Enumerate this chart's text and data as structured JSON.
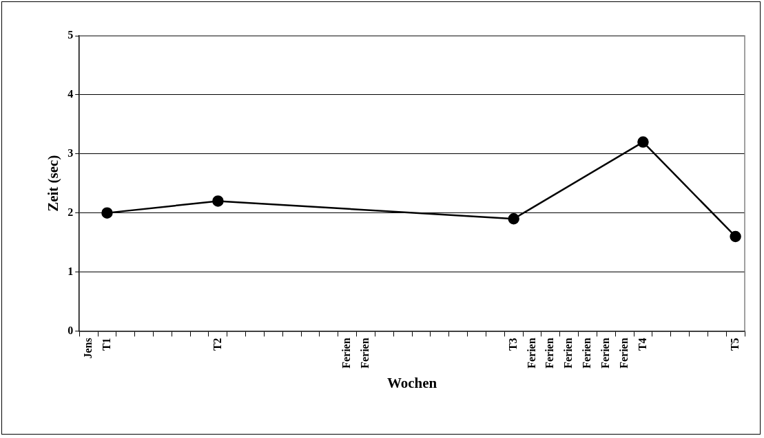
{
  "chart_data": {
    "type": "line",
    "xlabel": "Wochen",
    "ylabel": "Zeit (sec)",
    "categories": [
      "Jens",
      "T1",
      null,
      null,
      null,
      null,
      null,
      "T2",
      null,
      null,
      null,
      null,
      null,
      null,
      "Ferien",
      "Ferien",
      null,
      null,
      null,
      null,
      null,
      null,
      null,
      "T3",
      "Ferien",
      "Ferien",
      "Ferien",
      "Ferien",
      "Ferien",
      "Ferien",
      "T4",
      null,
      null,
      null,
      null,
      "T5"
    ],
    "series": [
      {
        "color": "#000000",
        "values": [
          null,
          2.0,
          null,
          null,
          null,
          null,
          null,
          2.2,
          null,
          null,
          null,
          null,
          null,
          null,
          null,
          null,
          null,
          null,
          null,
          null,
          null,
          null,
          null,
          1.9,
          null,
          null,
          null,
          null,
          null,
          null,
          3.2,
          null,
          null,
          null,
          null,
          1.6
        ]
      }
    ],
    "ylim": [
      0,
      5
    ],
    "yticks": [
      0,
      1,
      2,
      3,
      4,
      5
    ],
    "grid": "y",
    "marker": "circle",
    "line_style": "solid",
    "legend": false
  }
}
